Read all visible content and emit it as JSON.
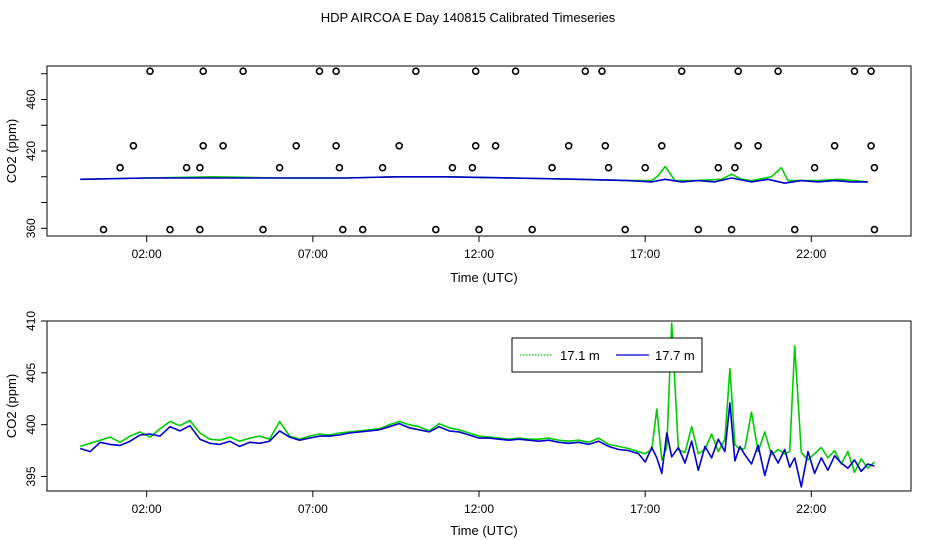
{
  "title": "HDP AIRCOA E  Day 140815  Calibrated Timeseries",
  "colors": {
    "green": "#00cc00",
    "blue": "#0000cc",
    "axis": "#000000",
    "background": "#ffffff"
  },
  "chart_data": [
    {
      "type": "line",
      "xlabel": "Time (UTC)",
      "ylabel": "CO2 (ppm)",
      "xlim": [
        -1.0,
        25.0
      ],
      "ylim": [
        354,
        486
      ],
      "x_ticks": [
        2,
        7,
        12,
        17,
        22
      ],
      "x_tick_labels": [
        "02:00",
        "07:00",
        "12:00",
        "17:00",
        "22:00"
      ],
      "y_ticks": [
        360,
        380,
        400,
        420,
        440,
        460,
        480
      ],
      "y_tick_labels": [
        "360",
        "",
        "",
        "420",
        "",
        "460",
        ""
      ],
      "grid": false,
      "series": [
        {
          "color": "#00cc00",
          "x": [
            0,
            2,
            4,
            6,
            8,
            9.5,
            11,
            13,
            15,
            16.5,
            17.2,
            17.4,
            17.6,
            17.9,
            18.5,
            19.3,
            19.6,
            19.9,
            20.2,
            20.8,
            21.1,
            21.3,
            21.6,
            22.2,
            22.8,
            23.3,
            23.7
          ],
          "y": [
            398,
            399,
            400,
            399,
            399,
            400,
            400,
            399,
            398,
            397,
            397,
            401,
            408,
            397,
            397,
            398,
            402,
            398,
            397,
            400,
            407,
            397,
            397,
            397,
            398,
            397,
            396
          ]
        },
        {
          "color": "#0000cc",
          "x": [
            0,
            2,
            4,
            6,
            8,
            9.5,
            11,
            13,
            15,
            16.5,
            17.2,
            17.6,
            18.1,
            18.6,
            19.1,
            19.6,
            20.2,
            20.7,
            21.2,
            21.7,
            22.2,
            22.7,
            23.2,
            23.7
          ],
          "y": [
            398,
            399,
            399,
            399,
            399,
            400,
            400,
            399,
            398,
            397,
            396,
            398,
            396,
            397,
            396,
            399,
            396,
            398,
            395,
            397,
            396,
            397,
            396,
            396
          ]
        }
      ],
      "points": {
        "x": [
          0.7,
          1.2,
          1.6,
          2.1,
          2.7,
          3.2,
          3.6,
          3.6,
          3.7,
          3.7,
          4.3,
          4.9,
          5.5,
          6.0,
          6.5,
          7.2,
          7.7,
          7.7,
          7.8,
          7.9,
          8.5,
          9.1,
          9.6,
          10.1,
          10.7,
          11.2,
          11.8,
          11.9,
          11.9,
          12.0,
          12.5,
          13.1,
          13.6,
          14.2,
          14.7,
          15.2,
          15.7,
          15.8,
          15.9,
          16.4,
          17.0,
          17.5,
          18.1,
          18.6,
          19.2,
          19.6,
          19.7,
          19.8,
          19.8,
          20.4,
          21.0,
          21.5,
          22.1,
          22.7,
          23.3,
          23.8,
          23.8,
          23.9,
          23.9
        ],
        "y": [
          359,
          407,
          424,
          482,
          359,
          407,
          359,
          407,
          424,
          482,
          424,
          482,
          359,
          407,
          424,
          482,
          482,
          424,
          407,
          359,
          359,
          407,
          424,
          482,
          359,
          407,
          407,
          424,
          482,
          359,
          424,
          482,
          359,
          407,
          424,
          482,
          482,
          424,
          407,
          359,
          407,
          424,
          482,
          359,
          407,
          359,
          407,
          424,
          482,
          424,
          482,
          359,
          407,
          424,
          482,
          482,
          424,
          407,
          359
        ]
      }
    },
    {
      "type": "line",
      "xlabel": "Time (UTC)",
      "ylabel": "CO2 (ppm)",
      "xlim": [
        -1.0,
        25.0
      ],
      "ylim": [
        393.6,
        410.0
      ],
      "x_ticks": [
        2,
        7,
        12,
        17,
        22
      ],
      "x_tick_labels": [
        "02:00",
        "07:00",
        "12:00",
        "17:00",
        "22:00"
      ],
      "y_ticks": [
        395,
        400,
        405,
        410
      ],
      "y_tick_labels": [
        "395",
        "400",
        "405",
        "410"
      ],
      "grid": false,
      "legend": {
        "placement": "top-right-of-center",
        "entries": [
          {
            "label": "17.1 m",
            "color": "#00cc00",
            "style": "dotted"
          },
          {
            "label": "17.7 m",
            "color": "#0000cc",
            "style": "solid"
          }
        ]
      },
      "series": [
        {
          "name": "17.1 m",
          "color": "#00cc00",
          "x": [
            0.0,
            0.3,
            0.6,
            0.9,
            1.2,
            1.5,
            1.8,
            2.1,
            2.4,
            2.7,
            3.0,
            3.3,
            3.6,
            3.9,
            4.2,
            4.5,
            4.8,
            5.1,
            5.4,
            5.7,
            6.0,
            6.3,
            6.6,
            6.9,
            7.2,
            7.5,
            7.8,
            8.1,
            8.4,
            8.7,
            9.0,
            9.3,
            9.6,
            9.9,
            10.2,
            10.5,
            10.8,
            11.1,
            11.4,
            11.7,
            12.0,
            12.3,
            12.6,
            12.9,
            13.2,
            13.5,
            13.8,
            14.1,
            14.4,
            14.7,
            15.0,
            15.3,
            15.6,
            15.9,
            16.2,
            16.5,
            16.8,
            17.0,
            17.2,
            17.35,
            17.5,
            17.65,
            17.8,
            18.0,
            18.2,
            18.4,
            18.6,
            18.8,
            19.0,
            19.2,
            19.4,
            19.55,
            19.7,
            19.85,
            20.0,
            20.2,
            20.4,
            20.6,
            20.8,
            21.0,
            21.2,
            21.35,
            21.5,
            21.7,
            21.9,
            22.1,
            22.3,
            22.5,
            22.7,
            22.9,
            23.1,
            23.3,
            23.5,
            23.7,
            23.9
          ],
          "y": [
            397.9,
            398.2,
            398.5,
            398.8,
            398.3,
            398.9,
            399.3,
            398.8,
            399.6,
            400.3,
            399.9,
            400.4,
            399.2,
            398.6,
            398.5,
            398.8,
            398.4,
            398.7,
            398.9,
            398.6,
            400.3,
            398.9,
            398.6,
            398.9,
            399.1,
            399.0,
            399.2,
            399.3,
            399.4,
            399.5,
            399.6,
            400.0,
            400.3,
            400.0,
            399.8,
            399.4,
            400.1,
            399.7,
            399.5,
            399.2,
            398.9,
            398.8,
            398.7,
            398.6,
            398.7,
            398.6,
            398.6,
            398.7,
            398.5,
            398.4,
            398.5,
            398.3,
            398.7,
            398.1,
            397.9,
            397.7,
            397.4,
            397.2,
            397.6,
            401.5,
            396.6,
            397.8,
            409.8,
            397.6,
            397.3,
            399.8,
            397.2,
            397.6,
            399.1,
            397.4,
            398.6,
            405.4,
            398.1,
            397.6,
            397.7,
            401.2,
            397.4,
            399.3,
            397.1,
            397.6,
            397.2,
            397.4,
            407.6,
            397.3,
            396.6,
            397.2,
            397.8,
            396.8,
            397.5,
            396.2,
            397.4,
            395.4,
            396.7,
            395.8,
            396.4
          ]
        },
        {
          "name": "17.7 m",
          "color": "#0000cc",
          "x": [
            0.0,
            0.3,
            0.6,
            0.9,
            1.2,
            1.5,
            1.8,
            2.1,
            2.4,
            2.7,
            3.0,
            3.3,
            3.6,
            3.9,
            4.2,
            4.5,
            4.8,
            5.1,
            5.4,
            5.7,
            6.0,
            6.3,
            6.6,
            6.9,
            7.2,
            7.5,
            7.8,
            8.1,
            8.4,
            8.7,
            9.0,
            9.3,
            9.6,
            9.9,
            10.2,
            10.5,
            10.8,
            11.1,
            11.4,
            11.7,
            12.0,
            12.3,
            12.6,
            12.9,
            13.2,
            13.5,
            13.8,
            14.1,
            14.4,
            14.7,
            15.0,
            15.3,
            15.6,
            15.9,
            16.2,
            16.5,
            16.8,
            17.0,
            17.2,
            17.35,
            17.5,
            17.65,
            17.8,
            18.0,
            18.2,
            18.4,
            18.6,
            18.8,
            19.0,
            19.2,
            19.4,
            19.55,
            19.7,
            19.85,
            20.0,
            20.2,
            20.4,
            20.6,
            20.8,
            21.0,
            21.2,
            21.35,
            21.5,
            21.7,
            21.9,
            22.1,
            22.3,
            22.5,
            22.7,
            22.9,
            23.1,
            23.3,
            23.5,
            23.7,
            23.9
          ],
          "y": [
            397.7,
            397.4,
            398.3,
            398.1,
            398.0,
            398.4,
            399.0,
            399.1,
            398.9,
            399.8,
            399.4,
            399.9,
            398.6,
            398.2,
            398.1,
            398.4,
            397.9,
            398.3,
            398.2,
            398.4,
            399.4,
            398.8,
            398.5,
            398.7,
            398.9,
            398.9,
            399.0,
            399.2,
            399.3,
            399.4,
            399.5,
            399.8,
            400.1,
            399.7,
            399.5,
            399.3,
            399.8,
            399.4,
            399.3,
            399.0,
            398.7,
            398.7,
            398.6,
            398.5,
            398.6,
            398.5,
            398.4,
            398.5,
            398.3,
            398.2,
            398.3,
            398.1,
            398.4,
            397.9,
            397.6,
            397.5,
            397.2,
            396.4,
            397.8,
            396.8,
            395.3,
            399.2,
            396.9,
            397.8,
            396.3,
            398.4,
            395.6,
            397.9,
            396.8,
            398.6,
            397.4,
            402.1,
            396.5,
            397.9,
            397.1,
            396.2,
            398.0,
            395.1,
            397.5,
            396.3,
            397.6,
            395.9,
            396.8,
            394.0,
            397.4,
            395.3,
            396.8,
            395.6,
            397.0,
            396.3,
            395.8,
            396.6,
            395.5,
            396.2,
            396.0
          ]
        }
      ]
    }
  ]
}
